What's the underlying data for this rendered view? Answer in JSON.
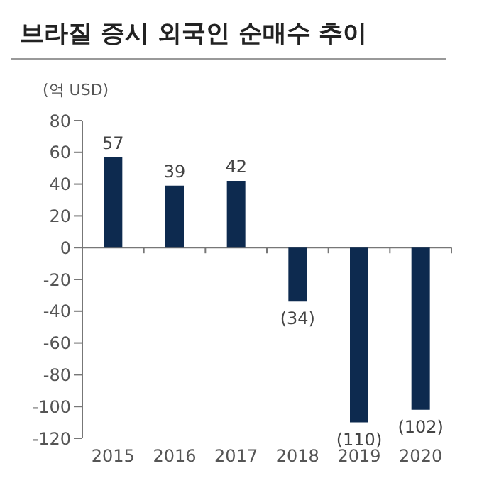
{
  "chart_data": {
    "type": "bar",
    "title": "브라질 증시 외국인 순매수 추이",
    "ylabel": "(억 USD)",
    "categories": [
      "2015",
      "2016",
      "2017",
      "2018",
      "2019",
      "2020"
    ],
    "values": [
      57,
      39,
      42,
      -34,
      -110,
      -102
    ],
    "value_labels": [
      "57",
      "39",
      "42",
      "(34)",
      "(110)",
      "(102)"
    ],
    "color": "#0d2a4f",
    "ylim": [
      -120,
      80
    ],
    "yticks": [
      -120,
      -100,
      -80,
      -60,
      -40,
      -20,
      0,
      20,
      40,
      60,
      80
    ]
  }
}
